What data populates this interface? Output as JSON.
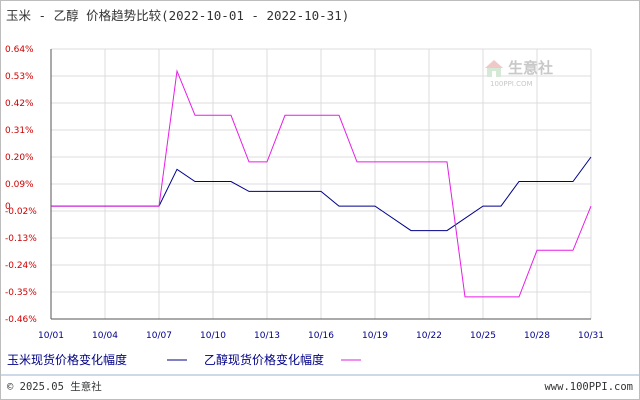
{
  "header": {
    "title": "玉米 - 乙醇 价格趋势比较(2022-10-01 - 2022-10-31)"
  },
  "watermark": {
    "brand": "生意社",
    "url": "100PPI.COM",
    "icon": "house-logo-icon"
  },
  "footer": {
    "copyright": "© 2025.05 生意社",
    "site": "www.100PPI.com"
  },
  "colors": {
    "corn": "#00008b",
    "ethanol": "#e61ee6",
    "axis_label_y": "#cc0000",
    "axis_label_x": "#000088",
    "grid": "#dcdcdc",
    "axis": "#555555"
  },
  "chart_data": {
    "type": "line",
    "title": "玉米 - 乙醇 价格趋势比较(2022-10-01 - 2022-10-31)",
    "xlabel": "",
    "ylabel": "",
    "x_ticks": [
      "10/01",
      "10/04",
      "10/07",
      "10/10",
      "10/13",
      "10/16",
      "10/19",
      "10/22",
      "10/25",
      "10/28",
      "10/31"
    ],
    "y_ticks": [
      "0.64%",
      "0.53%",
      "0.42%",
      "0.31%",
      "0.20%",
      "0.09%",
      "-0.02%",
      "-0.13%",
      "-0.24%",
      "-0.35%",
      "-0.46%"
    ],
    "y_zero_label": "0",
    "ylim": [
      -0.46,
      0.64
    ],
    "xlim": [
      "10/01",
      "10/31"
    ],
    "grid": true,
    "legend_position": "bottom",
    "series": [
      {
        "name": "玉米现货价格变化幅度",
        "points": [
          [
            "10/01",
            0
          ],
          [
            "10/07",
            0
          ],
          [
            "10/08",
            0.15
          ],
          [
            "10/09",
            0.1
          ],
          [
            "10/11",
            0.1
          ],
          [
            "10/12",
            0.06
          ],
          [
            "10/16",
            0.06
          ],
          [
            "10/17",
            0
          ],
          [
            "10/19",
            0
          ],
          [
            "10/21",
            -0.1
          ],
          [
            "10/23",
            -0.1
          ],
          [
            "10/25",
            0
          ],
          [
            "10/26",
            0
          ],
          [
            "10/27",
            0.1
          ],
          [
            "10/30",
            0.1
          ],
          [
            "10/31",
            0.2
          ]
        ]
      },
      {
        "name": "乙醇现货价格变化幅度",
        "points": [
          [
            "10/01",
            0
          ],
          [
            "10/07",
            0
          ],
          [
            "10/08",
            0.55
          ],
          [
            "10/09",
            0.37
          ],
          [
            "10/11",
            0.37
          ],
          [
            "10/12",
            0.18
          ],
          [
            "10/13",
            0.18
          ],
          [
            "10/14",
            0.37
          ],
          [
            "10/17",
            0.37
          ],
          [
            "10/18",
            0.18
          ],
          [
            "10/23",
            0.18
          ],
          [
            "10/24",
            -0.37
          ],
          [
            "10/27",
            -0.37
          ],
          [
            "10/28",
            -0.18
          ],
          [
            "10/30",
            -0.18
          ],
          [
            "10/31",
            0
          ]
        ]
      }
    ]
  }
}
